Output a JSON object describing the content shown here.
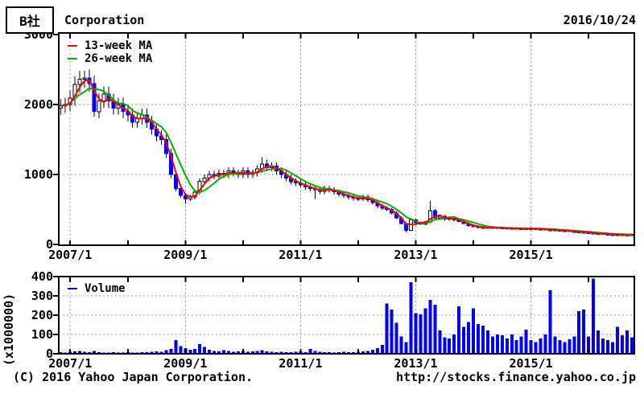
{
  "header": {
    "stock_label": "B社",
    "title": "Corporation",
    "date": "2016/10/24"
  },
  "footer": {
    "copyright": "(C) 2016 Yahoo Japan Corporation.",
    "url": "http://stocks.finance.yahoo.co.jp"
  },
  "colors": {
    "up_candle": "#ffffff",
    "down_candle": "#0000ff",
    "wick": "#000000",
    "ma13": "#ff0000",
    "ma26": "#00b300",
    "volume": "#0000ff",
    "grid": "#9a9a9a",
    "axis": "#000000",
    "background": "#ffffff"
  },
  "chart_data": [
    {
      "type": "candlestick",
      "title": "price",
      "period": "monthly",
      "start_month": "2006/11",
      "end_month": "2016/10",
      "ylim": [
        0,
        3030
      ],
      "yticks": [
        0,
        1000,
        2000,
        3000
      ],
      "x_labeled_ticks": [
        "2007/1",
        "2009/1",
        "2011/1",
        "2013/1",
        "2015/1"
      ],
      "grid": "dashed",
      "legend_position": "top-left",
      "series": [
        {
          "name": "13-week MA",
          "window_months": 3,
          "color_key": "ma13"
        },
        {
          "name": "26-week MA",
          "window_months": 6,
          "color_key": "ma26"
        }
      ],
      "candles_format": [
        "open",
        "high",
        "low",
        "close"
      ],
      "candles": [
        [
          1950,
          2080,
          1850,
          1980
        ],
        [
          1980,
          2100,
          1880,
          2000
        ],
        [
          2000,
          2195,
          1900,
          2090
        ],
        [
          2090,
          2405,
          1985,
          2290
        ],
        [
          2290,
          2480,
          2175,
          2360
        ],
        [
          2360,
          2480,
          2240,
          2380
        ],
        [
          2380,
          2500,
          2185,
          2300
        ],
        [
          2300,
          2415,
          1830,
          1900
        ],
        [
          1900,
          2155,
          1805,
          2050
        ],
        [
          2050,
          2260,
          1950,
          2150
        ],
        [
          2150,
          2260,
          1950,
          2050
        ],
        [
          2050,
          2155,
          1855,
          1950
        ],
        [
          1950,
          2100,
          1855,
          2000
        ],
        [
          2000,
          2100,
          1805,
          1900
        ],
        [
          1900,
          1995,
          1760,
          1850
        ],
        [
          1850,
          1945,
          1665,
          1750
        ],
        [
          1750,
          1890,
          1665,
          1800
        ],
        [
          1800,
          1945,
          1710,
          1850
        ],
        [
          1850,
          1945,
          1665,
          1750
        ],
        [
          1750,
          1840,
          1570,
          1650
        ],
        [
          1650,
          1735,
          1475,
          1550
        ],
        [
          1550,
          1630,
          1425,
          1500
        ],
        [
          1500,
          1575,
          1235,
          1300
        ],
        [
          1300,
          1365,
          950,
          1000
        ],
        [
          1000,
          1050,
          760,
          800
        ],
        [
          800,
          840,
          665,
          700
        ],
        [
          700,
          735,
          580,
          650
        ],
        [
          650,
          715,
          620,
          680
        ],
        [
          680,
          790,
          645,
          750
        ],
        [
          750,
          945,
          715,
          900
        ],
        [
          900,
          1000,
          855,
          950
        ],
        [
          950,
          1050,
          905,
          1000
        ],
        [
          1000,
          1050,
          930,
          980
        ],
        [
          980,
          1070,
          930,
          1020
        ],
        [
          1020,
          1070,
          950,
          1000
        ],
        [
          1000,
          1105,
          950,
          1050
        ],
        [
          1050,
          1105,
          970,
          1020
        ],
        [
          1020,
          1070,
          950,
          1000
        ],
        [
          1000,
          1105,
          950,
          1050
        ],
        [
          1050,
          1105,
          950,
          1000
        ],
        [
          1000,
          1070,
          950,
          1020
        ],
        [
          1020,
          1135,
          970,
          1080
        ],
        [
          1080,
          1250,
          1025,
          1150
        ],
        [
          1150,
          1210,
          1045,
          1100
        ],
        [
          1100,
          1175,
          1045,
          1120
        ],
        [
          1120,
          1175,
          1000,
          1050
        ],
        [
          1050,
          1105,
          950,
          1000
        ],
        [
          1000,
          1050,
          905,
          950
        ],
        [
          950,
          1000,
          855,
          900
        ],
        [
          900,
          945,
          835,
          880
        ],
        [
          880,
          925,
          810,
          850
        ],
        [
          850,
          895,
          780,
          820
        ],
        [
          820,
          860,
          760,
          800
        ],
        [
          800,
          840,
          650,
          780
        ],
        [
          780,
          820,
          720,
          760
        ],
        [
          760,
          840,
          720,
          800
        ],
        [
          800,
          840,
          740,
          780
        ],
        [
          780,
          820,
          715,
          750
        ],
        [
          750,
          790,
          685,
          720
        ],
        [
          720,
          755,
          665,
          700
        ],
        [
          700,
          735,
          645,
          680
        ],
        [
          680,
          715,
          625,
          660
        ],
        [
          660,
          695,
          620,
          650
        ],
        [
          650,
          715,
          620,
          680
        ],
        [
          680,
          715,
          610,
          640
        ],
        [
          640,
          670,
          570,
          600
        ],
        [
          600,
          630,
          520,
          550
        ],
        [
          550,
          580,
          495,
          520
        ],
        [
          520,
          545,
          475,
          500
        ],
        [
          500,
          525,
          430,
          450
        ],
        [
          450,
          475,
          360,
          380
        ],
        [
          380,
          400,
          285,
          300
        ],
        [
          300,
          315,
          170,
          200
        ],
        [
          200,
          370,
          190,
          350
        ],
        [
          350,
          370,
          295,
          310
        ],
        [
          310,
          325,
          275,
          290
        ],
        [
          290,
          335,
          275,
          320
        ],
        [
          320,
          620,
          305,
          480
        ],
        [
          480,
          505,
          360,
          380
        ],
        [
          380,
          420,
          360,
          400
        ],
        [
          400,
          420,
          340,
          360
        ],
        [
          360,
          400,
          340,
          380
        ],
        [
          380,
          400,
          330,
          350
        ],
        [
          350,
          370,
          315,
          330
        ],
        [
          330,
          345,
          285,
          300
        ],
        [
          300,
          315,
          255,
          270
        ],
        [
          270,
          285,
          245,
          260
        ],
        [
          260,
          275,
          230,
          240
        ],
        [
          240,
          265,
          230,
          250
        ],
        [
          250,
          265,
          225,
          235
        ],
        [
          235,
          255,
          225,
          245
        ],
        [
          245,
          255,
          220,
          230
        ],
        [
          230,
          250,
          220,
          240
        ],
        [
          240,
          250,
          215,
          225
        ],
        [
          225,
          245,
          215,
          235
        ],
        [
          235,
          245,
          210,
          220
        ],
        [
          220,
          240,
          210,
          230
        ],
        [
          230,
          240,
          215,
          225
        ],
        [
          225,
          240,
          215,
          230
        ],
        [
          230,
          240,
          210,
          220
        ],
        [
          220,
          235,
          210,
          225
        ],
        [
          225,
          235,
          200,
          210
        ],
        [
          210,
          225,
          200,
          215
        ],
        [
          215,
          225,
          195,
          205
        ],
        [
          205,
          215,
          185,
          195
        ],
        [
          195,
          210,
          185,
          200
        ],
        [
          200,
          210,
          180,
          190
        ],
        [
          190,
          200,
          175,
          185
        ],
        [
          185,
          195,
          170,
          180
        ],
        [
          180,
          190,
          165,
          175
        ],
        [
          175,
          185,
          155,
          165
        ],
        [
          165,
          175,
          145,
          155
        ],
        [
          155,
          170,
          145,
          160
        ],
        [
          160,
          170,
          140,
          150
        ],
        [
          150,
          160,
          140,
          145
        ],
        [
          145,
          155,
          130,
          140
        ],
        [
          140,
          150,
          135,
          145
        ],
        [
          145,
          150,
          130,
          135
        ],
        [
          135,
          145,
          130,
          140
        ],
        [
          140,
          150,
          130,
          145
        ]
      ]
    },
    {
      "type": "bar",
      "name": "Volume",
      "unit_label": "(x1000000)",
      "ylim": [
        0,
        400
      ],
      "yticks": [
        0,
        100,
        200,
        300,
        400
      ],
      "x_labeled_ticks": [
        "2007/1",
        "2009/1",
        "2011/1",
        "2013/1",
        "2015/1"
      ],
      "grid": "dashed",
      "values": [
        8,
        6,
        10,
        12,
        15,
        10,
        8,
        14,
        9,
        7,
        6,
        8,
        7,
        6,
        8,
        7,
        6,
        9,
        8,
        10,
        12,
        10,
        18,
        25,
        70,
        40,
        30,
        20,
        25,
        50,
        35,
        20,
        15,
        12,
        18,
        14,
        10,
        12,
        15,
        10,
        12,
        14,
        18,
        12,
        10,
        8,
        10,
        9,
        8,
        10,
        12,
        8,
        25,
        15,
        10,
        8,
        9,
        7,
        8,
        10,
        9,
        8,
        10,
        12,
        15,
        20,
        30,
        45,
        260,
        230,
        160,
        90,
        60,
        370,
        210,
        205,
        235,
        280,
        255,
        120,
        85,
        80,
        100,
        245,
        140,
        165,
        235,
        155,
        145,
        120,
        90,
        100,
        95,
        80,
        100,
        70,
        90,
        125,
        70,
        60,
        80,
        100,
        330,
        90,
        70,
        60,
        75,
        90,
        220,
        230,
        90,
        390,
        120,
        80,
        70,
        60,
        140,
        95,
        120,
        85
      ]
    }
  ]
}
